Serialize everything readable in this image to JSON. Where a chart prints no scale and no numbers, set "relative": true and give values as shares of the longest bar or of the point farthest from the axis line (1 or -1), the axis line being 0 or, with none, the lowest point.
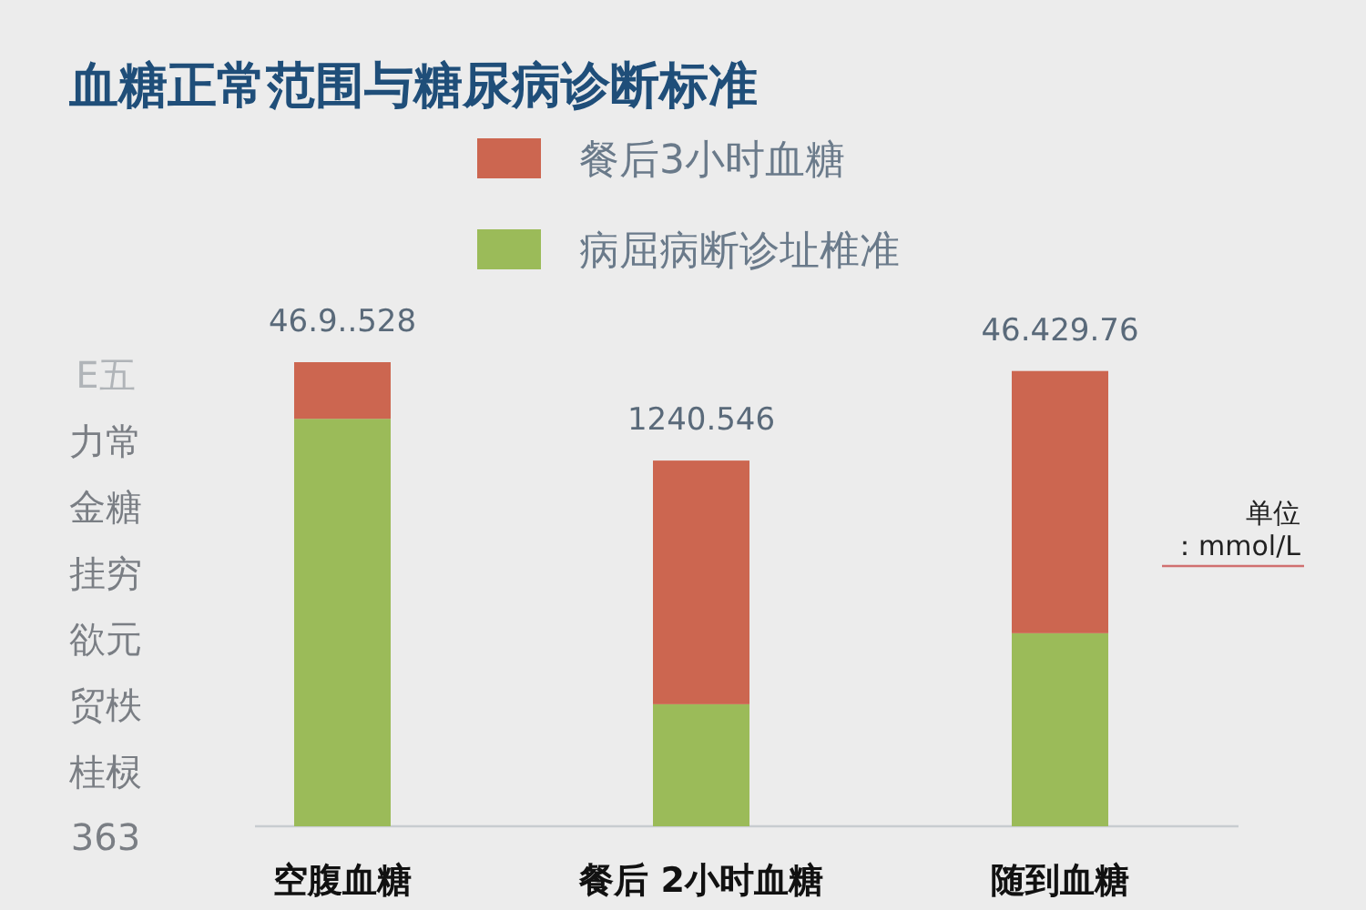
{
  "chart_data": {
    "type": "bar",
    "title": "血糖正常范围与糖尿病诊断标准",
    "categories": [
      "空腹血糖",
      "餐后 2小时血糖",
      "随到血糖"
    ],
    "stacked": true,
    "relative": true,
    "legend": "top",
    "series": [
      {
        "name": "病屈病断诊址椎准",
        "color": "#9bbb59",
        "values": [
          0.878,
          0.263,
          0.416
        ]
      },
      {
        "name": "餐后3小时血糖",
        "color": "#cc6650",
        "values": [
          0.122,
          0.525,
          0.565
        ]
      }
    ],
    "annotations": [
      "46.9..528",
      "1240.546",
      "46.429.76",
      "E五",
      "力常",
      "金糖",
      "挂穷",
      "欲元",
      "贸柣",
      "桂棂",
      "363",
      "单位",
      "：mmol/L"
    ]
  }
}
